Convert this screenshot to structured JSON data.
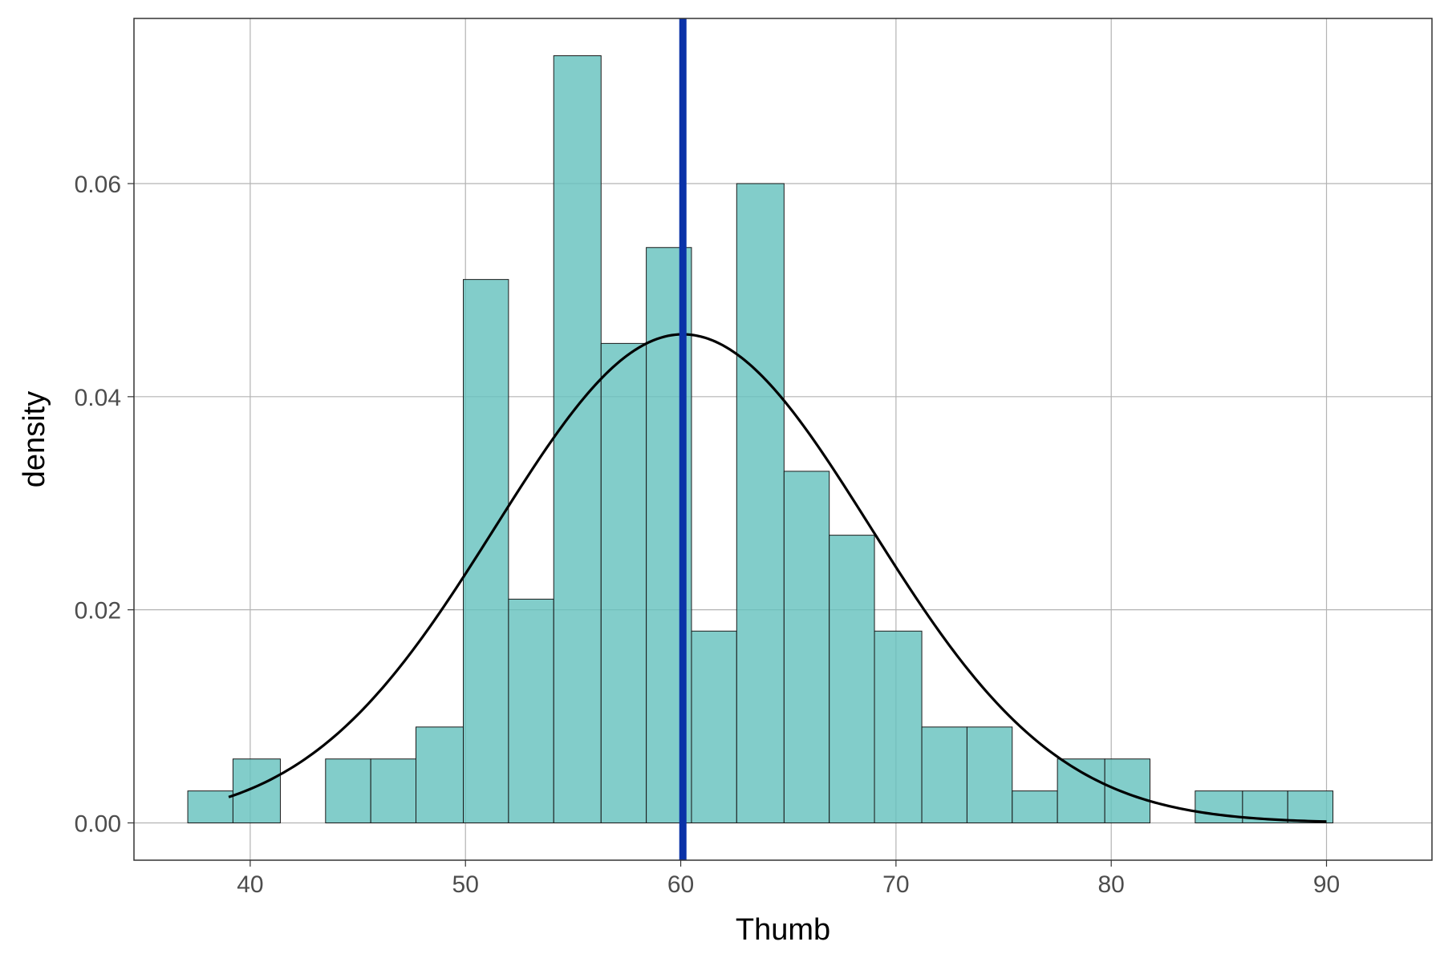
{
  "chart_data": {
    "type": "bar",
    "subtype": "histogram-with-density-curve",
    "xlabel": "Thumb",
    "ylabel": "density",
    "xlim": [
      34.6,
      94.9
    ],
    "ylim": [
      -0.0035,
      0.0755
    ],
    "xticks": [
      {
        "value": 40,
        "label": "40"
      },
      {
        "value": 50,
        "label": "50"
      },
      {
        "value": 60,
        "label": "60"
      },
      {
        "value": 70,
        "label": "70"
      },
      {
        "value": 80,
        "label": "80"
      },
      {
        "value": 90,
        "label": "90"
      }
    ],
    "yticks": [
      {
        "value": 0.0,
        "label": "0.00"
      },
      {
        "value": 0.02,
        "label": "0.02"
      },
      {
        "value": 0.04,
        "label": "0.04"
      },
      {
        "value": 0.06,
        "label": "0.06"
      }
    ],
    "bins": [
      {
        "x0": 37.1,
        "x1": 39.2,
        "density": 0.003
      },
      {
        "x0": 39.2,
        "x1": 41.4,
        "density": 0.006
      },
      {
        "x0": 41.4,
        "x1": 43.5,
        "density": 0.0
      },
      {
        "x0": 43.5,
        "x1": 45.6,
        "density": 0.006
      },
      {
        "x0": 45.6,
        "x1": 47.7,
        "density": 0.006
      },
      {
        "x0": 47.7,
        "x1": 49.9,
        "density": 0.009
      },
      {
        "x0": 49.9,
        "x1": 52.0,
        "density": 0.051
      },
      {
        "x0": 52.0,
        "x1": 54.1,
        "density": 0.021
      },
      {
        "x0": 54.1,
        "x1": 56.3,
        "density": 0.072
      },
      {
        "x0": 56.3,
        "x1": 58.4,
        "density": 0.045
      },
      {
        "x0": 58.4,
        "x1": 60.5,
        "density": 0.054
      },
      {
        "x0": 60.5,
        "x1": 62.6,
        "density": 0.018
      },
      {
        "x0": 62.6,
        "x1": 64.8,
        "density": 0.06
      },
      {
        "x0": 64.8,
        "x1": 66.9,
        "density": 0.033
      },
      {
        "x0": 66.9,
        "x1": 69.0,
        "density": 0.027
      },
      {
        "x0": 69.0,
        "x1": 71.2,
        "density": 0.018
      },
      {
        "x0": 71.2,
        "x1": 73.3,
        "density": 0.009
      },
      {
        "x0": 73.3,
        "x1": 75.4,
        "density": 0.009
      },
      {
        "x0": 75.4,
        "x1": 77.5,
        "density": 0.003
      },
      {
        "x0": 77.5,
        "x1": 79.7,
        "density": 0.006
      },
      {
        "x0": 79.7,
        "x1": 81.8,
        "density": 0.006
      },
      {
        "x0": 81.8,
        "x1": 83.9,
        "density": 0.0
      },
      {
        "x0": 83.9,
        "x1": 86.1,
        "density": 0.003
      },
      {
        "x0": 86.1,
        "x1": 88.2,
        "density": 0.003
      },
      {
        "x0": 88.2,
        "x1": 90.3,
        "density": 0.003
      }
    ],
    "density_curve": {
      "distribution": "normal",
      "mean": 60.1,
      "sd": 8.7,
      "x_range": [
        39.0,
        90.0
      ],
      "color": "#000000"
    },
    "mean_line": {
      "x": 60.1,
      "color": "#0a32a8"
    },
    "bar_color": "#66c2be",
    "grid": true,
    "legend": "none"
  }
}
